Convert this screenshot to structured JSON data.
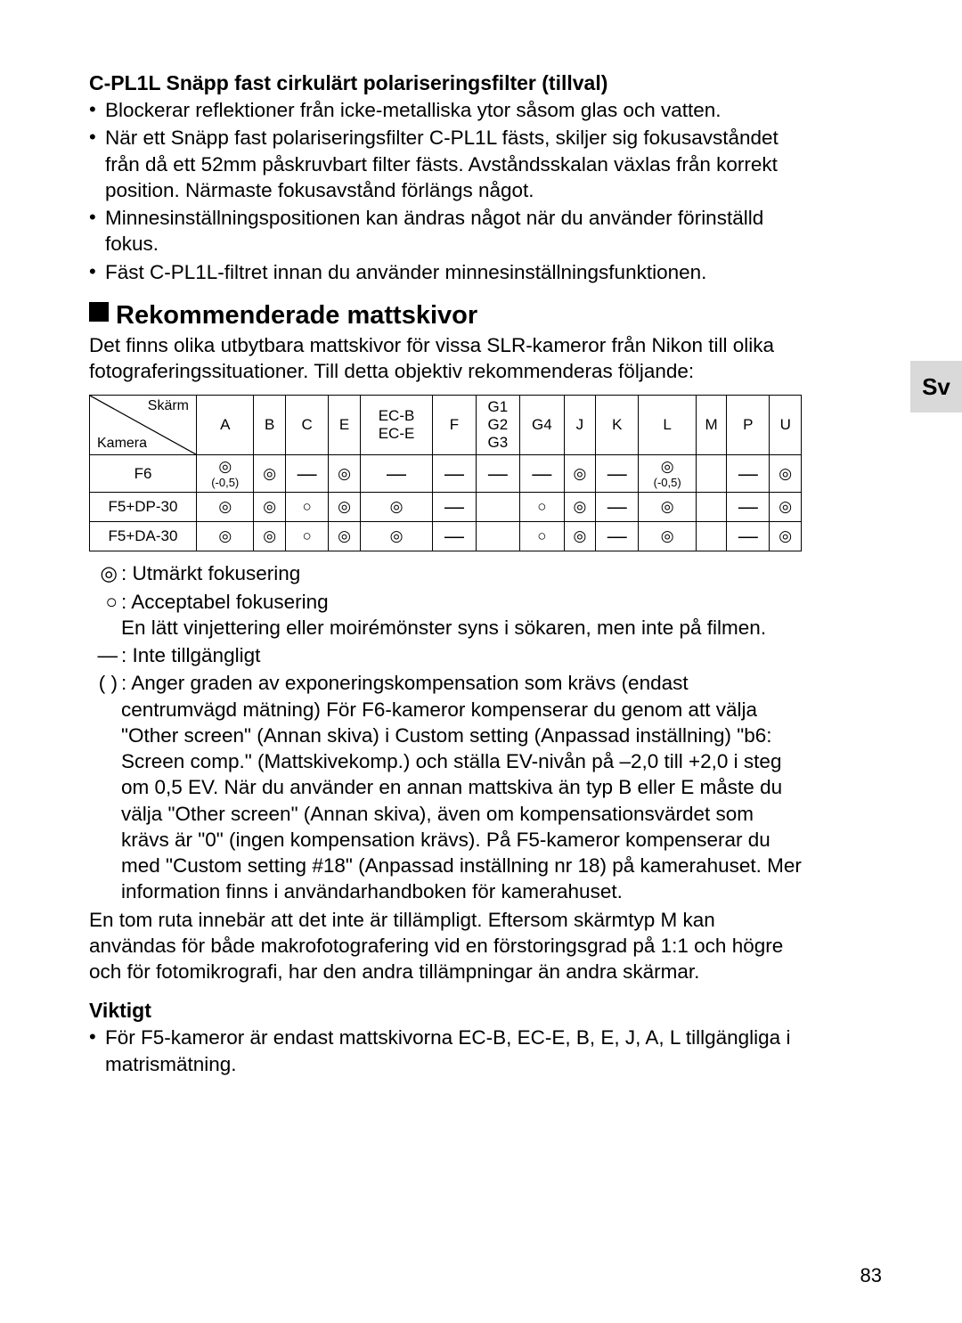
{
  "section1": {
    "title": "C-PL1L Snäpp fast cirkulärt polariseringsfilter (tillval)",
    "bullets": [
      "Blockerar reflektioner från icke-metalliska ytor såsom glas och vatten.",
      "När ett Snäpp fast polariseringsfilter C-PL1L fästs, skiljer sig fokusavståndet från då ett 52mm påskruvbart filter fästs. Avståndsskalan växlas från korrekt position. Närmaste fokusavstånd förlängs något.",
      "Minnesinställningspositionen kan ändras något när du använder förinställd fokus.",
      "Fäst C-PL1L-filtret innan du använder minnesinställningsfunktionen."
    ]
  },
  "section2": {
    "title": "Rekommenderade mattskivor",
    "intro": "Det finns olika utbytbara mattskivor för vissa SLR-kameror från Nikon till olika fotograferingssituationer. Till detta objektiv rekommenderas följande:"
  },
  "table": {
    "diag_top": "Skärm",
    "diag_bot": "Kamera",
    "cols": [
      "A",
      "B",
      "C",
      "E",
      "EC-B\nEC-E",
      "F",
      "G1\nG2\nG3",
      "G4",
      "J",
      "K",
      "L",
      "M",
      "P",
      "U"
    ],
    "rows": [
      {
        "label": "F6",
        "cells": [
          "◎sub",
          "◎",
          "—",
          "◎",
          "—",
          "—",
          "—",
          "—",
          "◎",
          "—",
          "◎sub",
          "",
          "—",
          "◎"
        ]
      },
      {
        "label": "F5+DP-30",
        "cells": [
          "◎",
          "◎",
          "○",
          "◎",
          "◎",
          "—",
          "",
          "○",
          "◎",
          "—",
          "◎",
          "",
          "—",
          "◎"
        ]
      },
      {
        "label": "F5+DA-30",
        "cells": [
          "◎",
          "◎",
          "○",
          "◎",
          "◎",
          "—",
          "",
          "○",
          "◎",
          "—",
          "◎",
          "",
          "—",
          "◎"
        ]
      }
    ],
    "sub_label": "(-0,5)"
  },
  "legend": {
    "l1": {
      "sym": "◎",
      "txt": ": Utmärkt fokusering"
    },
    "l2": {
      "sym": "○",
      "txt1": ": Acceptabel fokusering",
      "txt2": "En lätt vinjettering eller moirémönster syns i sökaren, men inte på filmen."
    },
    "l3": {
      "sym": "―",
      "txt": ": Inte tillgängligt"
    },
    "l4": {
      "sym": "( )",
      "txt": ": Anger graden av exponeringskompensation som krävs (endast centrumvägd mätning) För F6-kameror kompenserar du genom att välja \"Other screen\" (Annan skiva) i Custom setting (Anpassad inställning) \"b6: Screen comp.\" (Mattskivekomp.) och ställa EV-nivån på –2,0 till +2,0 i steg om 0,5 EV. När du använder en annan mattskiva än typ B eller E måste du välja \"Other screen\" (Annan skiva), även om kompensationsvärdet som krävs är \"0\" (ingen kompensation krävs). På F5-kameror kompenserar du med \"Custom setting #18\" (Anpassad inställning nr 18) på kamerahuset. Mer information finns i användarhandboken för kamerahuset."
    },
    "after": "En tom ruta innebär att det inte är tillämpligt. Eftersom skärmtyp M kan användas för både makrofotografering vid en förstoringsgrad på 1:1 och högre och för fotomikrografi, har den andra tillämpningar än andra skärmar."
  },
  "important": {
    "title": "Viktigt",
    "bullet": "För F5-kameror är endast mattskivorna EC-B, EC-E, B, E, J, A, L tillgängliga i matrismätning."
  },
  "tab": "Sv",
  "page": "83"
}
